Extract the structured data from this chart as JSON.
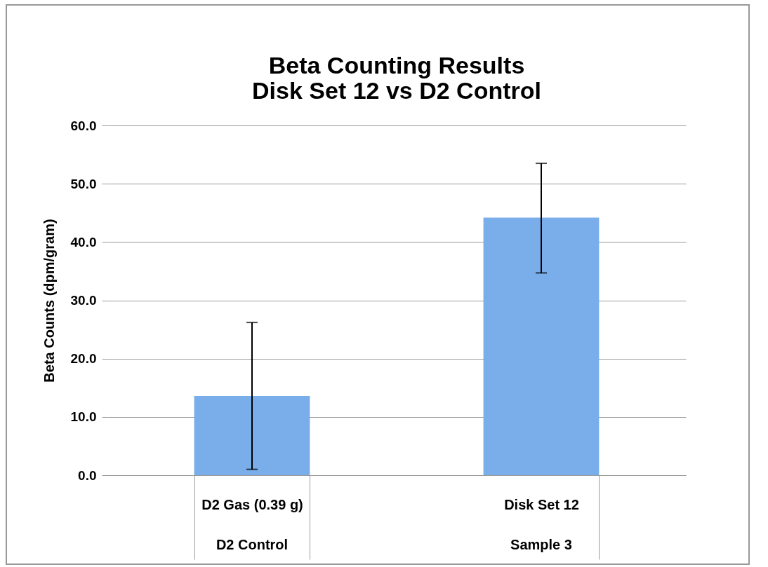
{
  "chart_data": {
    "type": "bar",
    "title": [
      "Beta Counting Results",
      "Disk Set 12  vs D2 Control"
    ],
    "ylabel": "Beta Counts  (dpm/gram)",
    "categories": [
      "D2 Gas (0.39 g)",
      "Disk Set 12"
    ],
    "values": [
      13.6,
      44.2
    ],
    "errors": [
      [
        1.0,
        26.2
      ],
      [
        34.7,
        53.5
      ]
    ],
    "color": "#79aeeb",
    "annotations": [
      "D2 Control",
      "Sample 3"
    ],
    "ylim": [
      0,
      60
    ],
    "yticks": [
      {
        "value": 0,
        "label": "0.0"
      },
      {
        "value": 10,
        "label": "10.0"
      },
      {
        "value": 20,
        "label": "20.0"
      },
      {
        "value": 30,
        "label": "30.0"
      },
      {
        "value": 40,
        "label": "40.0"
      },
      {
        "value": 50,
        "label": "50.0"
      },
      {
        "value": 60,
        "label": "60.0"
      }
    ],
    "grid": "y"
  }
}
